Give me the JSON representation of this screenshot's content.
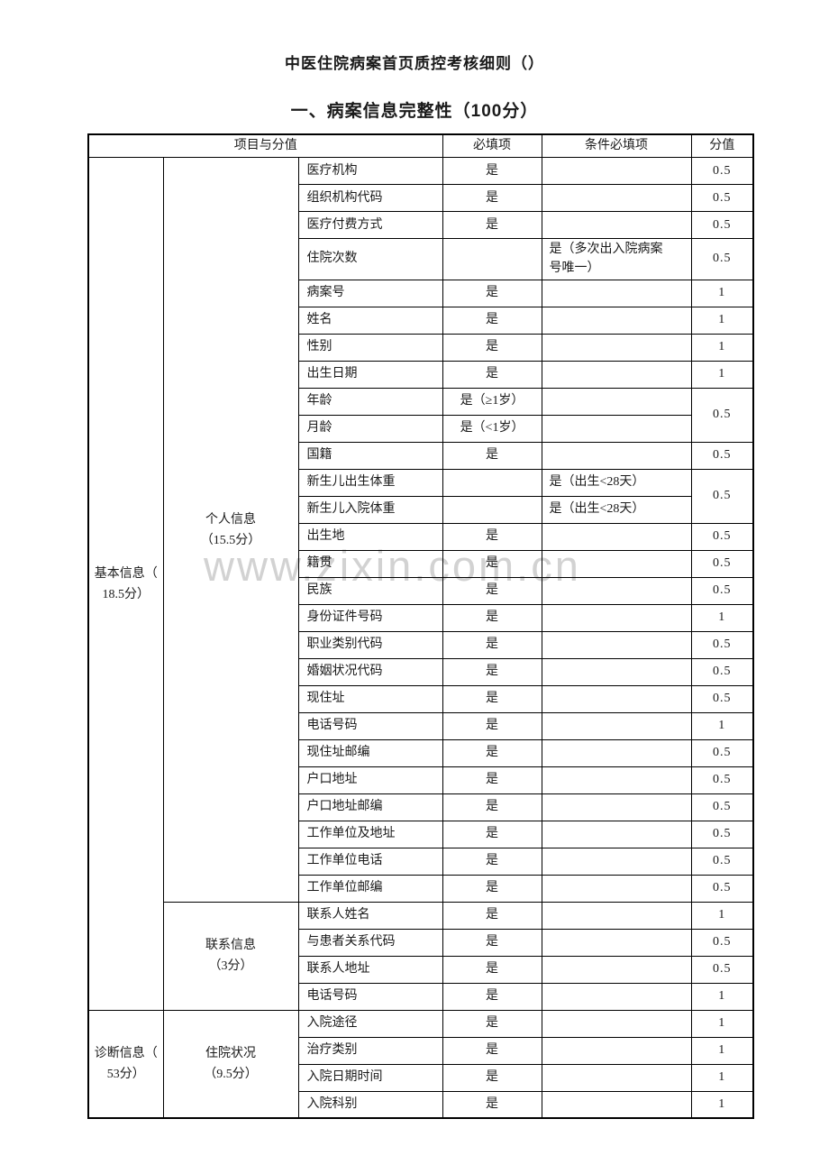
{
  "page": {
    "title": "中医住院病案首页质控考核细则（）",
    "subtitle": "一、病案信息完整性（100分）",
    "watermark": "www.zixin.com.cn"
  },
  "colors": {
    "border": "#000000",
    "watermark": "#d2d2d2",
    "background": "#ffffff"
  },
  "table": {
    "headers": {
      "project": "项目与分值",
      "required": "必填项",
      "conditional": "条件必填项",
      "score": "分值"
    },
    "row_groups": [
      {
        "label": "基本信息（\n18.5分）",
        "start": 0,
        "span": 31
      },
      {
        "label": "诊断信息（\n53分）",
        "start": 31,
        "span": 4
      }
    ],
    "sub_groups": [
      {
        "label": "个人信息\n（15.5分）",
        "start": 0,
        "span": 27
      },
      {
        "label": "联系信息\n（3分）",
        "start": 27,
        "span": 4
      },
      {
        "label": "住院状况\n（9.5分）",
        "start": 31,
        "span": 4
      }
    ],
    "score_merges": [
      {
        "start": 8,
        "span": 2,
        "value": "0.5"
      },
      {
        "start": 11,
        "span": 2,
        "value": "0.5"
      }
    ],
    "rows": [
      {
        "item": "医疗机构",
        "required": "是",
        "conditional": "",
        "score": "0.5"
      },
      {
        "item": "组织机构代码",
        "required": "是",
        "conditional": "",
        "score": "0.5"
      },
      {
        "item": "医疗付费方式",
        "required": "是",
        "conditional": "",
        "score": "0.5"
      },
      {
        "item": "住院次数",
        "required": "",
        "conditional": "是（多次出入院病案\n号唯一）",
        "score": "0.5"
      },
      {
        "item": "病案号",
        "required": "是",
        "conditional": "",
        "score": "1"
      },
      {
        "item": "姓名",
        "required": "是",
        "conditional": "",
        "score": "1"
      },
      {
        "item": "性别",
        "required": "是",
        "conditional": "",
        "score": "1"
      },
      {
        "item": "出生日期",
        "required": "是",
        "conditional": "",
        "score": "1"
      },
      {
        "item": "年龄",
        "required": "是（≥1岁）",
        "conditional": "",
        "score": ""
      },
      {
        "item": "月龄",
        "required": "是（<1岁）",
        "conditional": "",
        "score": ""
      },
      {
        "item": "国籍",
        "required": "是",
        "conditional": "",
        "score": "0.5"
      },
      {
        "item": "新生儿出生体重",
        "required": "",
        "conditional": "是（出生<28天）",
        "score": ""
      },
      {
        "item": "新生儿入院体重",
        "required": "",
        "conditional": "是（出生<28天）",
        "score": ""
      },
      {
        "item": "出生地",
        "required": "是",
        "conditional": "",
        "score": "0.5"
      },
      {
        "item": "籍贯",
        "required": "是",
        "conditional": "",
        "score": "0.5"
      },
      {
        "item": "民族",
        "required": "是",
        "conditional": "",
        "score": "0.5"
      },
      {
        "item": "身份证件号码",
        "required": "是",
        "conditional": "",
        "score": "1"
      },
      {
        "item": "职业类别代码",
        "required": "是",
        "conditional": "",
        "score": "0.5"
      },
      {
        "item": "婚姻状况代码",
        "required": "是",
        "conditional": "",
        "score": "0.5"
      },
      {
        "item": "现住址",
        "required": "是",
        "conditional": "",
        "score": "0.5"
      },
      {
        "item": "电话号码",
        "required": "是",
        "conditional": "",
        "score": "1"
      },
      {
        "item": "现住址邮编",
        "required": "是",
        "conditional": "",
        "score": "0.5"
      },
      {
        "item": "户口地址",
        "required": "是",
        "conditional": "",
        "score": "0.5"
      },
      {
        "item": "户口地址邮编",
        "required": "是",
        "conditional": "",
        "score": "0.5"
      },
      {
        "item": "工作单位及地址",
        "required": "是",
        "conditional": "",
        "score": "0.5"
      },
      {
        "item": "工作单位电话",
        "required": "是",
        "conditional": "",
        "score": "0.5"
      },
      {
        "item": "工作单位邮编",
        "required": "是",
        "conditional": "",
        "score": "0.5"
      },
      {
        "item": "联系人姓名",
        "required": "是",
        "conditional": "",
        "score": "1"
      },
      {
        "item": "与患者关系代码",
        "required": "是",
        "conditional": "",
        "score": "0.5"
      },
      {
        "item": "联系人地址",
        "required": "是",
        "conditional": "",
        "score": "0.5"
      },
      {
        "item": "电话号码",
        "required": "是",
        "conditional": "",
        "score": "1"
      },
      {
        "item": "入院途径",
        "required": "是",
        "conditional": "",
        "score": "1"
      },
      {
        "item": "治疗类别",
        "required": "是",
        "conditional": "",
        "score": "1"
      },
      {
        "item": "入院日期时间",
        "required": "是",
        "conditional": "",
        "score": "1"
      },
      {
        "item": "入院科别",
        "required": "是",
        "conditional": "",
        "score": "1"
      }
    ]
  }
}
